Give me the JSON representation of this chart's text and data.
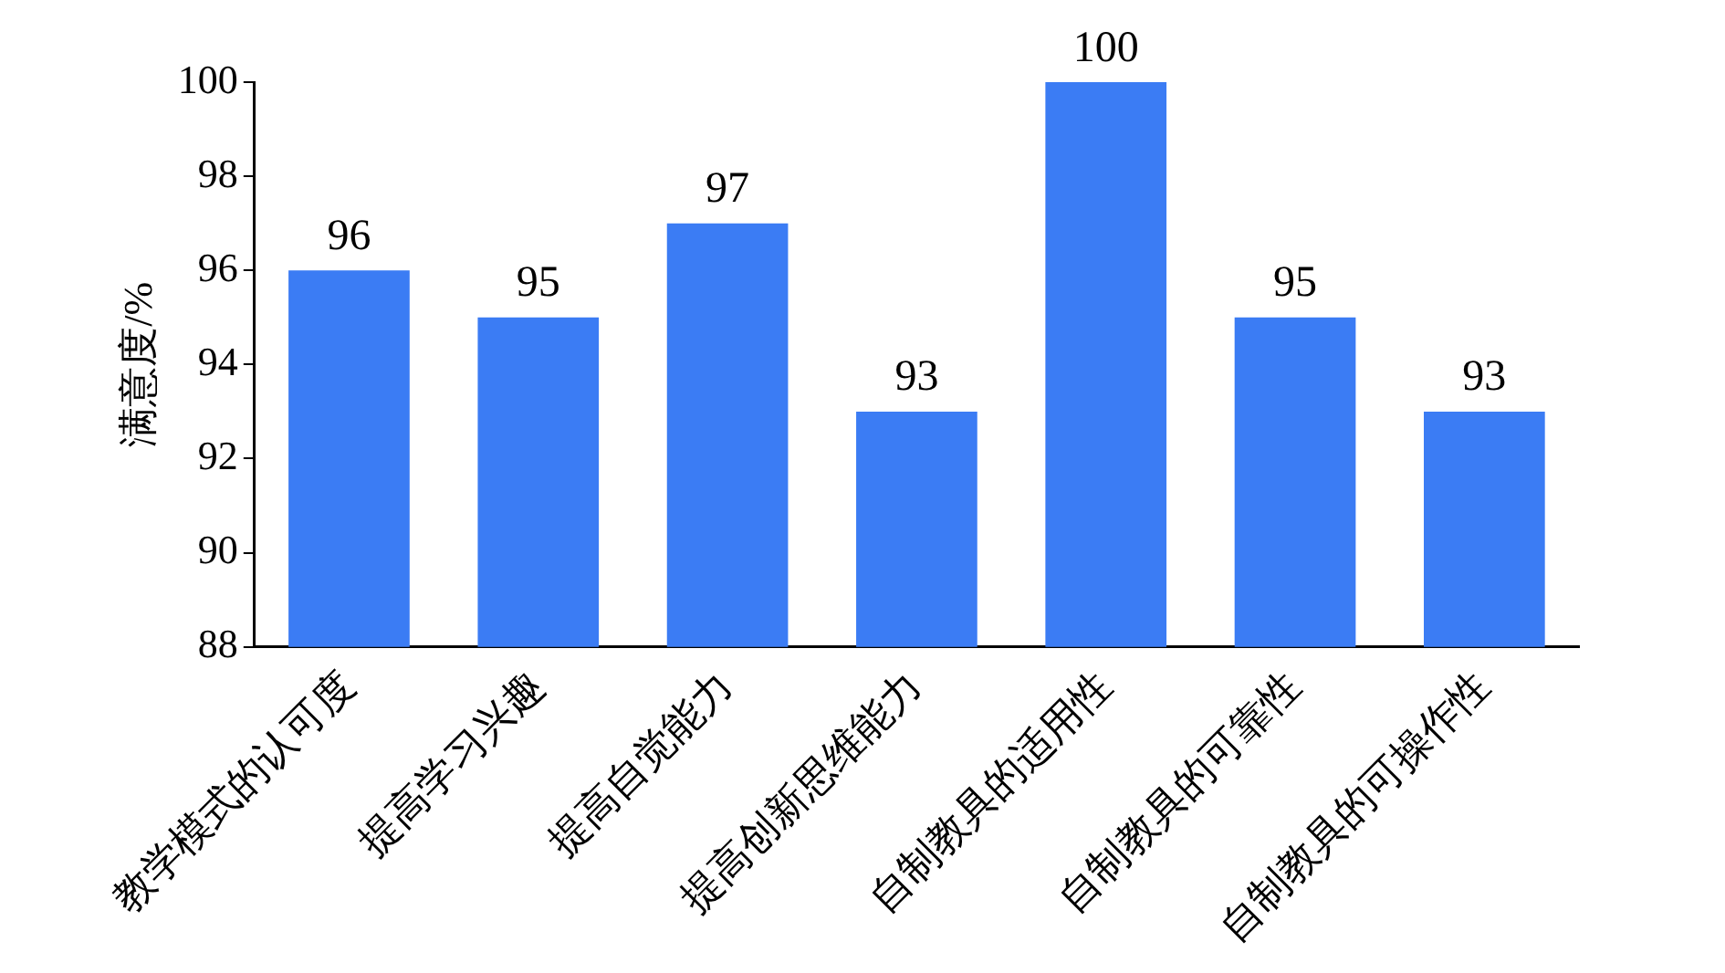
{
  "chart_data": {
    "type": "bar",
    "ylabel": "满意度/%",
    "categories": [
      "教学模式的认可度",
      "提高学习兴趣",
      "提高自觉能力",
      "提高创新思维能力",
      "自制教具的适用性",
      "自制教具的可靠性",
      "自制教具的可操作性"
    ],
    "values": [
      96,
      95,
      97,
      93,
      100,
      95,
      93
    ],
    "color": "#3b7cf4",
    "ylim": [
      88,
      100
    ],
    "yticks": [
      88,
      90,
      92,
      94,
      96,
      98,
      100
    ],
    "grid": false,
    "data_labels": true
  }
}
